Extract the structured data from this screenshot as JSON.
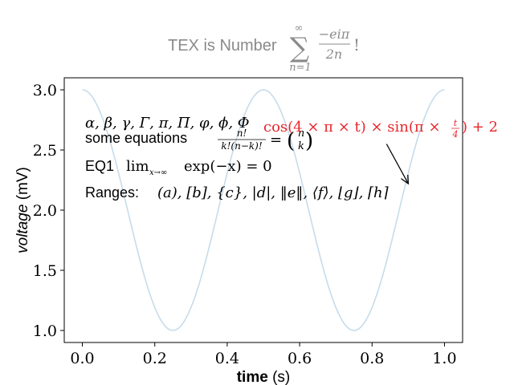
{
  "chart_data": {
    "type": "line",
    "title": {
      "prefix": "TEX is Number",
      "sum_upper": "∞",
      "sum_symbol": "∑",
      "sum_lower": "n=1",
      "frac_num": "−eiπ",
      "frac_den": "2n",
      "suffix": "!"
    },
    "xlabel": {
      "bold": "time",
      "rest": " (s)"
    },
    "ylabel": {
      "italic": "voltage",
      "rest": " (mV)"
    },
    "xlim": [
      -0.05,
      1.05
    ],
    "ylim": [
      0.9,
      3.1
    ],
    "xticks": [
      0.0,
      0.2,
      0.4,
      0.6,
      0.8,
      1.0
    ],
    "xtick_labels": [
      "0.0",
      "0.2",
      "0.4",
      "0.6",
      "0.8",
      "1.0"
    ],
    "yticks": [
      1.0,
      1.5,
      2.0,
      2.5,
      3.0
    ],
    "ytick_labels": [
      "1.0",
      "1.5",
      "2.0",
      "2.5",
      "3.0"
    ],
    "series": [
      {
        "function": "cos(4πt) + 2",
        "x_range": [
          0,
          1
        ],
        "samples": 201,
        "color": "#c6dcec"
      }
    ],
    "annotations": {
      "greek": "α, β, γ, Γ, π, Π, φ, ϕ, Φ",
      "equations_label": "some equations",
      "equations_frac_num": "n!",
      "equations_frac_den": "k!(n−k)!",
      "equations_eq": "=",
      "binom_top": "n",
      "binom_bottom": "k",
      "eq1_label": "EQ1",
      "eq1_lim": "lim",
      "eq1_sub": "x→∞",
      "eq1_expr": "exp(−x) = 0",
      "ranges_label": "Ranges:",
      "ranges_expr": "(a), [b], {c}, |d|, ‖e‖, ⟨f⟩, ⌊g⌋, ⌈h⌉",
      "red_expr_main": "cos(4 × π × t) × sin(π × ",
      "red_frac_num": "t",
      "red_frac_den": "4",
      "red_expr_tail": ") + 2",
      "red_color": "#e8262b",
      "arrow_tip": {
        "x": 0.9,
        "y": 2.22
      },
      "arrow_tail": {
        "x": 0.84,
        "y": 2.55
      }
    }
  }
}
